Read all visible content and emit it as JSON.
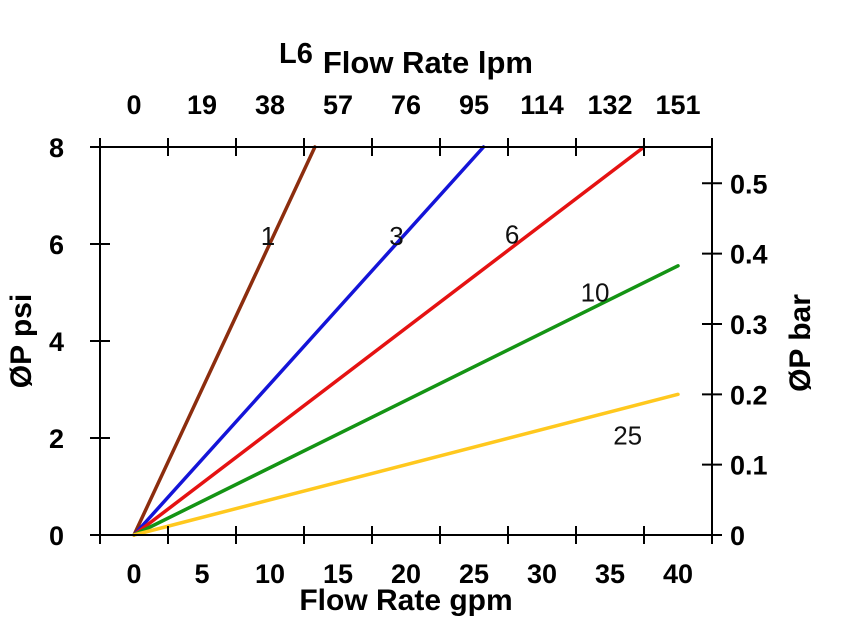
{
  "chart_data": {
    "type": "line",
    "title": {
      "prefix": "L6",
      "text": "Flow Rate lpm"
    },
    "grid": false,
    "background": "#ffffff",
    "axis_color": "#000000",
    "x_bottom": {
      "label": "Flow Rate gpm",
      "unit": "gpm",
      "range": [
        -2.5,
        42.5
      ],
      "labels": [
        0,
        5,
        10,
        15,
        20,
        25,
        30,
        35,
        40
      ],
      "tick_marks": [
        -2.5,
        2.5,
        7.5,
        12.5,
        17.5,
        22.5,
        27.5,
        32.5,
        37.5,
        42.5
      ]
    },
    "x_top": {
      "unit": "lpm",
      "labels": [
        "0",
        "19",
        "38",
        "57",
        "76",
        "95",
        "114",
        "132",
        "151"
      ],
      "label_positions_gpm": [
        0,
        5,
        10,
        15,
        20,
        25,
        30,
        35,
        40
      ]
    },
    "y_left": {
      "label": "ØP psi",
      "unit": "psi",
      "range": [
        0,
        8
      ],
      "labels": [
        0,
        2,
        4,
        6,
        8
      ]
    },
    "y_right": {
      "label": "ØP bar",
      "unit": "bar",
      "labels": [
        "0",
        "0.1",
        "0.2",
        "0.3",
        "0.4",
        "0.5"
      ],
      "values_bar": [
        0,
        0.1,
        0.2,
        0.3,
        0.4,
        0.5
      ],
      "psi_per_bar": 14.5038
    },
    "series": [
      {
        "name": "1",
        "color": "#8C2D0E",
        "points_gpm_psi": [
          [
            0,
            0
          ],
          [
            13.3,
            8
          ]
        ],
        "label": {
          "text": "1",
          "gpm": 9.85,
          "psi": 6.16
        }
      },
      {
        "name": "3",
        "color": "#1414D8",
        "points_gpm_psi": [
          [
            0,
            0
          ],
          [
            25.7,
            8
          ]
        ],
        "label": {
          "text": "3",
          "gpm": 19.3,
          "psi": 6.16
        }
      },
      {
        "name": "6",
        "color": "#E51212",
        "points_gpm_psi": [
          [
            0,
            0
          ],
          [
            37.5,
            8
          ]
        ],
        "label": {
          "text": "6",
          "gpm": 27.8,
          "psi": 6.2
        }
      },
      {
        "name": "10",
        "color": "#149414",
        "points_gpm_psi": [
          [
            0,
            0
          ],
          [
            40,
            5.55
          ]
        ],
        "label": {
          "text": "10",
          "gpm": 33.9,
          "psi": 5.0
        }
      },
      {
        "name": "25",
        "color": "#FFC81E",
        "points_gpm_psi": [
          [
            0,
            0
          ],
          [
            40,
            2.9
          ]
        ],
        "label": {
          "text": "25",
          "gpm": 36.3,
          "psi": 2.05
        }
      }
    ]
  }
}
